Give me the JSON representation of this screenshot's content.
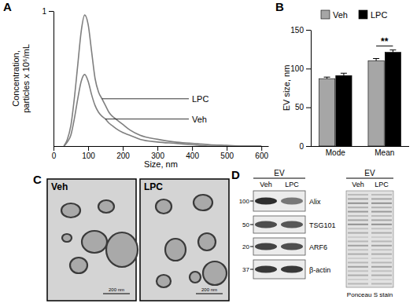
{
  "panel_labels": [
    "A",
    "B",
    "C",
    "D"
  ],
  "chart_data": [
    {
      "type": "line",
      "x_label": "Size, nm",
      "y_label": [
        "Concentration,",
        "particles x 10⁶/mL"
      ],
      "x": [
        30,
        40,
        50,
        60,
        70,
        80,
        90,
        100,
        110,
        120,
        130,
        140,
        150,
        160,
        170,
        180,
        200,
        220,
        250,
        300,
        350,
        400,
        450,
        500,
        550,
        600
      ],
      "series": [
        {
          "name": "Veh",
          "color": "#7f7f7f",
          "values": [
            0,
            0.03,
            0.08,
            0.2,
            0.35,
            0.48,
            0.53,
            0.48,
            0.38,
            0.3,
            0.25,
            0.22,
            0.2,
            0.17,
            0.15,
            0.13,
            0.1,
            0.08,
            0.05,
            0.03,
            0.02,
            0.01,
            0,
            0,
            0,
            0
          ]
        },
        {
          "name": "LPC",
          "color": "#7f7f7f",
          "values": [
            0,
            0.05,
            0.15,
            0.35,
            0.6,
            0.85,
            0.97,
            0.9,
            0.7,
            0.5,
            0.4,
            0.35,
            0.3,
            0.25,
            0.22,
            0.2,
            0.16,
            0.12,
            0.08,
            0.05,
            0.03,
            0.02,
            0.01,
            0.005,
            0,
            0
          ]
        }
      ],
      "xlim": [
        0,
        620
      ],
      "xticks": [
        0,
        100,
        200,
        300,
        400,
        500,
        600
      ],
      "ylim": [
        0,
        1
      ],
      "yticks": [
        1
      ]
    },
    {
      "type": "bar",
      "y_label": "EV size, nm",
      "categories": [
        "Mode",
        "Mean"
      ],
      "series": [
        {
          "name": "Veh",
          "color": "#a6a6a6",
          "values": [
            87,
            110
          ],
          "errors": [
            2,
            3
          ]
        },
        {
          "name": "LPC",
          "color": "#000000",
          "values": [
            91,
            121
          ],
          "errors": [
            3,
            3
          ]
        }
      ],
      "ylim": [
        0,
        150
      ],
      "yticks": [
        0,
        50,
        100,
        150
      ],
      "legend": "top",
      "annotations": [
        {
          "text": "**",
          "category": "Mean"
        }
      ]
    }
  ],
  "micrographs": {
    "panels": [
      {
        "label": "Veh"
      },
      {
        "label": "LPC"
      }
    ],
    "scale_bar": "200 nm"
  },
  "western_blot": {
    "header": "EV",
    "lanes": [
      "Veh",
      "LPC"
    ],
    "markers": [
      100,
      50,
      20,
      37
    ],
    "proteins": [
      "Alix",
      "TSG101",
      "ARF6",
      "β-actin"
    ],
    "stain": {
      "header": "EV",
      "lanes": [
        "Veh",
        "LPC"
      ],
      "label": "Ponceau S stain"
    }
  }
}
